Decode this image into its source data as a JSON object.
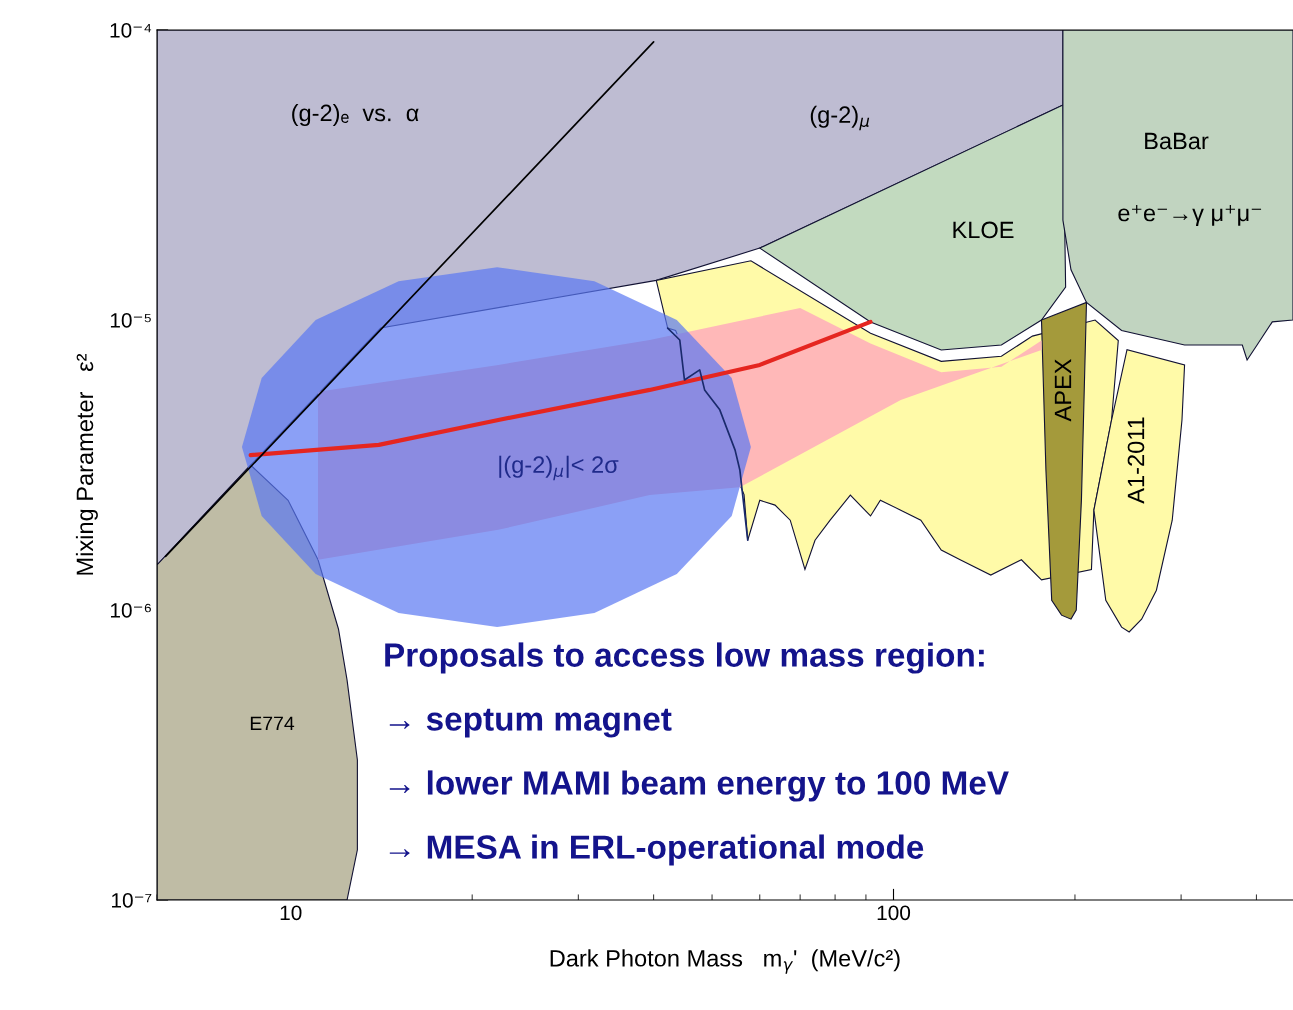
{
  "chart_data": {
    "type": "area",
    "xlabel": "Dark Photon Mass   m$_{γ}$'  (MeV/c²)",
    "ylabel": "Mixing Parameter   ε²",
    "log": "xy",
    "xlim": [
      6,
      460
    ],
    "xticks": [
      10,
      100
    ],
    "ylim": [
      1e-07,
      0.0001
    ],
    "yticks": [
      {
        "value": 1e-07,
        "label": "10⁻⁷"
      },
      {
        "value": 1e-06,
        "label": "10⁻⁶"
      },
      {
        "value": 1e-05,
        "label": "10⁻⁵"
      },
      {
        "value": 0.0001,
        "label": "10⁻⁴"
      }
    ],
    "grid": false,
    "legend": false,
    "series": [
      {
        "color": "#bebcd2",
        "line_style": "solid",
        "x": [
          6,
          8.58,
          14.1,
          40.4,
          60,
          191,
          191,
          6
        ],
        "values": [
          1.43e-06,
          3.16e-06,
          9.38e-06,
          1.37e-05,
          1.77e-05,
          5.51e-05,
          0.0001,
          0.0001
        ]
      },
      {
        "color": "#bfbca5",
        "line_style": "solid",
        "x": [
          6,
          8.58,
          9.9,
          11.1,
          12.0,
          12.4,
          12.9,
          12.9,
          12.4,
          6
        ],
        "values": [
          1.43e-06,
          3.16e-06,
          2.39e-06,
          1.49e-06,
          8.6e-07,
          5.74e-07,
          3.04e-07,
          1.49e-07,
          1e-07,
          1e-07
        ]
      },
      {
        "color": "#c2dabf",
        "line_style": "solid",
        "x": [
          60,
          191,
          193,
          176,
          151,
          120,
          91.6
        ],
        "values": [
          1.77e-05,
          5.51e-05,
          1.3e-05,
          1e-05,
          8.2e-06,
          7.88e-06,
          9.85e-06
        ]
      },
      {
        "color": "#c1d4c0",
        "line_style": "solid",
        "x": [
          191,
          460,
          460,
          425,
          401,
          386,
          379,
          304,
          239,
          209,
          197,
          191
        ],
        "values": [
          0.0001,
          0.0001,
          1e-05,
          9.85e-06,
          8.2e-06,
          7.28e-06,
          8.2e-06,
          8.2e-06,
          9.2e-06,
          1.15e-05,
          1.49e-05,
          2.21e-05
        ]
      },
      {
        "color": "#fffaa8",
        "line_style": "solid",
        "x": [
          40.4,
          42.2,
          43.5,
          56.5,
          57.3,
          60,
          63.6,
          67.4,
          71.3,
          74.1,
          78.5,
          84.8,
          91.6,
          95.1,
          102.8,
          111,
          120,
          129,
          145,
          163,
          176,
          213,
          215,
          230,
          236,
          216,
          170,
          151,
          120,
          91.6,
          58
        ],
        "values": [
          1.37e-05,
          9.38e-06,
          9.2e-06,
          2.5e-06,
          1.74e-06,
          2.39e-06,
          2.3e-06,
          2.04e-06,
          1.38e-06,
          1.74e-06,
          2.04e-06,
          2.49e-06,
          2.11e-06,
          2.39e-06,
          2.21e-06,
          2.04e-06,
          1.61e-06,
          1.49e-06,
          1.32e-06,
          1.49e-06,
          1.27e-06,
          1.38e-06,
          2.21e-06,
          4.52e-06,
          8.5e-06,
          1e-05,
          8.8e-06,
          7.5e-06,
          7.2e-06,
          9e-06,
          1.6e-05
        ]
      },
      {
        "color": "#fffaa8",
        "line_style": "solid",
        "x": [
          215,
          225,
          239,
          246,
          258,
          273,
          290,
          301,
          304,
          244,
          230
        ],
        "values": [
          2.21e-06,
          1.08e-06,
          8.73e-07,
          8.4e-07,
          9.3e-07,
          1.17e-06,
          2.04e-06,
          4.52e-06,
          7e-06,
          7.9e-06,
          4.52e-06
        ]
      },
      {
        "color": "#a49a3b",
        "line_style": "solid",
        "x": [
          176,
          209,
          205,
          201,
          197,
          190,
          183,
          179
        ],
        "values": [
          1e-05,
          1.15e-05,
          2.39e-06,
          1e-06,
          9.3e-07,
          9.6e-07,
          1.08e-06,
          3.04e-06
        ]
      },
      {
        "color": "#ffb8b8",
        "x": [
          11.1,
          22.1,
          39.4,
          70,
          91.6,
          120,
          151,
          176,
          176,
          102.8,
          55.6,
          39.4,
          22.1,
          11.1
        ],
        "values": [
          5.66e-06,
          7e-06,
          8.53e-06,
          1.1e-05,
          8.3e-06,
          6.6e-06,
          6.9e-06,
          8.5e-06,
          7.88e-06,
          5.3e-06,
          2.65e-06,
          2.49e-06,
          1.89e-06,
          1.49e-06
        ]
      },
      {
        "type": "line",
        "color": "#e52620",
        "x": [
          8.58,
          14.0,
          22.1,
          39.4,
          60,
          91.6
        ],
        "values": [
          3.42e-06,
          3.71e-06,
          4.52e-06,
          5.74e-06,
          7e-06,
          9.85e-06
        ]
      },
      {
        "type": "line",
        "color": "#1a2a6c",
        "x": [
          42.2,
          44.2,
          45.0,
          47.7,
          48.6,
          51.5,
          54.6,
          55.6,
          57.3
        ],
        "values": [
          9.38e-06,
          8.53e-06,
          6.21e-06,
          6.73e-06,
          5.74e-06,
          4.9e-06,
          3.56e-06,
          3.04e-06,
          1.74e-06
        ]
      },
      {
        "type": "line",
        "color": "#000000",
        "x": [
          6.2,
          40
        ],
        "values": [
          1.53e-06,
          9.1e-05
        ]
      },
      {
        "color": "#5a78f2",
        "x": [
          58.0,
          53.9,
          43.7,
          31.9,
          22.0,
          15.1,
          11.0,
          8.95,
          8.3,
          8.95,
          11.0,
          15.1,
          22.0,
          31.9,
          43.7,
          53.9
        ],
        "values": [
          3.65e-06,
          6.31e-06,
          1e-05,
          1.36e-05,
          1.52e-05,
          1.36e-05,
          1e-05,
          6.31e-06,
          3.65e-06,
          2.11e-06,
          1.33e-06,
          9.77e-07,
          8.73e-07,
          9.77e-07,
          1.33e-06,
          2.11e-06
        ]
      }
    ],
    "annotations": [
      "(g-2)ₑ  vs.  α",
      "(g-2)$_{μ}$",
      "BaBar",
      "e⁺e⁻→γ μ⁺μ⁻",
      "KLOE",
      "APEX",
      "A1-2011",
      "E774",
      "|(g-2)$_{μ}$|< 2σ",
      "Proposals to access low mass region:",
      "→ septum magnet",
      "→ lower MAMI beam energy to 100 MeV",
      "→ MESA in ERL-operational mode"
    ]
  }
}
